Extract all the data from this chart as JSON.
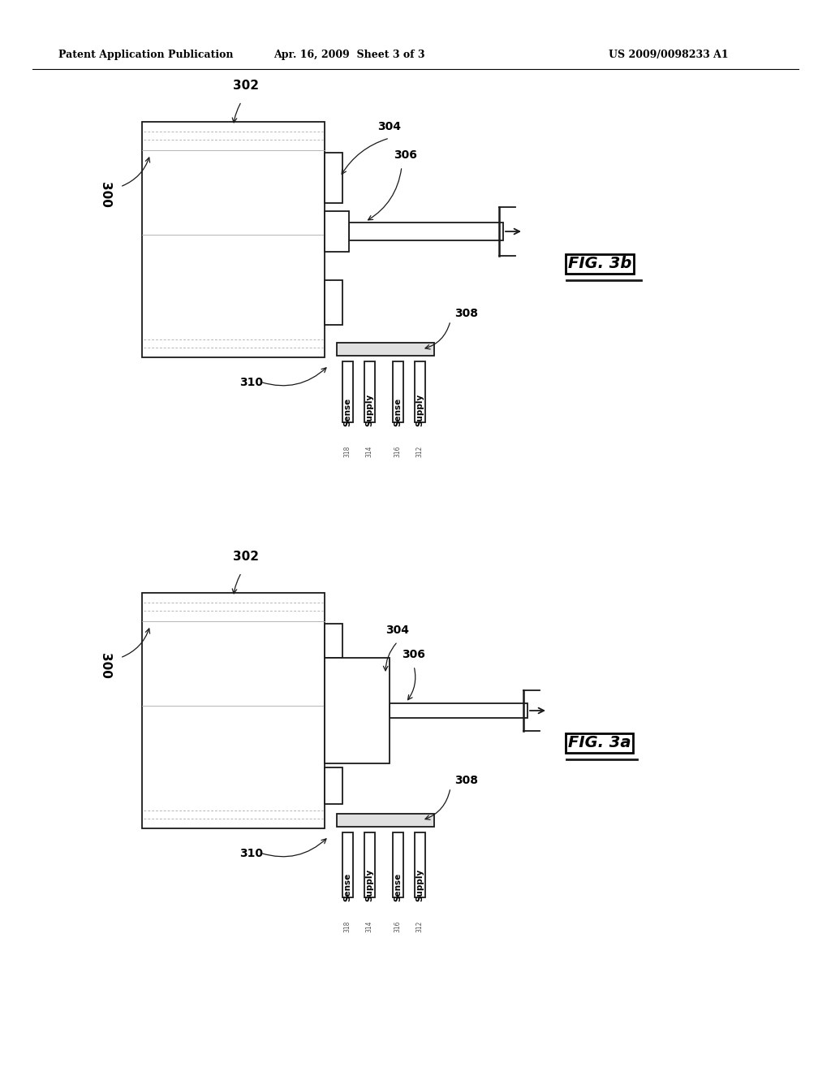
{
  "bg_color": "#ffffff",
  "header_left": "Patent Application Publication",
  "header_mid": "Apr. 16, 2009  Sheet 3 of 3",
  "header_right": "US 2009/0098233 A1",
  "fig_b_label": "FIG. 3b",
  "fig_a_label": "FIG. 3a",
  "dark": "#1a1a1a",
  "light_gray": "#e0e0e0",
  "mid_gray": "#b0b0b0",
  "dot_gray": "#999999"
}
